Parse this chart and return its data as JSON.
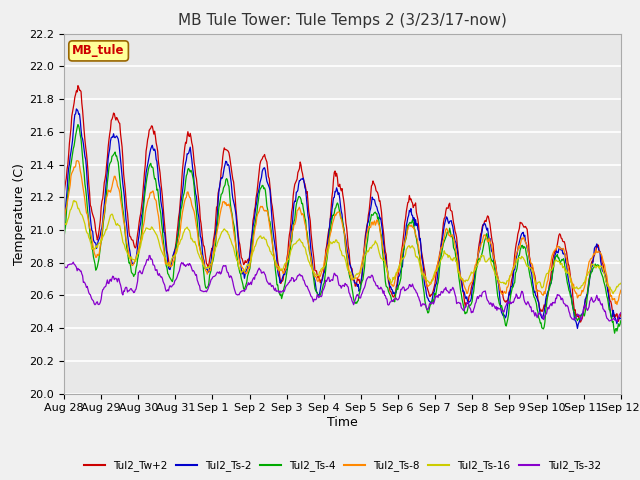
{
  "title": "MB Tule Tower: Tule Temps 2 (3/23/17-now)",
  "xlabel": "Time",
  "ylabel": "Temperature (C)",
  "ylim": [
    20.0,
    22.2
  ],
  "yticks": [
    20.0,
    20.2,
    20.4,
    20.6,
    20.8,
    21.0,
    21.2,
    21.4,
    21.6,
    21.8,
    22.0,
    22.2
  ],
  "series": [
    {
      "label": "Tul2_Tw+2",
      "color": "#cc0000"
    },
    {
      "label": "Tul2_Ts-2",
      "color": "#0000cc"
    },
    {
      "label": "Tul2_Ts-4",
      "color": "#00aa00"
    },
    {
      "label": "Tul2_Ts-8",
      "color": "#ff8800"
    },
    {
      "label": "Tul2_Ts-16",
      "color": "#cccc00"
    },
    {
      "label": "Tul2_Ts-32",
      "color": "#8800cc"
    }
  ],
  "background_color": "#f0f0f0",
  "plot_bg_color": "#e8e8e8",
  "grid_color": "#ffffff",
  "title_fontsize": 11,
  "axis_fontsize": 9,
  "tick_fontsize": 8,
  "legend_box_color": "#ffff99",
  "legend_box_edge": "#996600",
  "legend_box_text": "#cc0000",
  "inset_label": "MB_tule",
  "x_tick_labels": [
    "Aug 28",
    "Aug 29",
    "Aug 30",
    "Aug 31",
    "Sep 1",
    "Sep 2",
    "Sep 3",
    "Sep 4",
    "Sep 5",
    "Sep 6",
    "Sep 7",
    "Sep 8",
    "Sep 9",
    "Sep 10",
    "Sep 11",
    "Sep 12"
  ]
}
